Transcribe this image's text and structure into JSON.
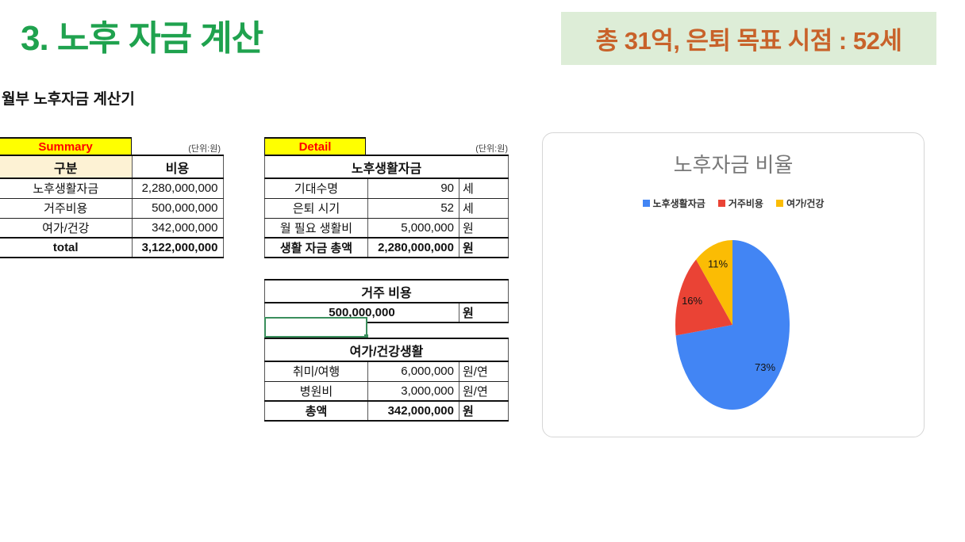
{
  "page": {
    "title": "3. 노후 자금 계산",
    "banner": "총 31억, 은퇴 목표 시점 : 52세",
    "subtitle": "월부 노후자금 계산기"
  },
  "summary": {
    "tab_label": "Summary",
    "unit_note": "(단위:원)",
    "columns": [
      "구분",
      "비용"
    ],
    "rows": [
      {
        "label": "노후생활자금",
        "value": "2,280,000,000"
      },
      {
        "label": "거주비용",
        "value": "500,000,000"
      },
      {
        "label": "여가/건강",
        "value": "342,000,000"
      }
    ],
    "total": {
      "label": "total",
      "value": "3,122,000,000"
    }
  },
  "detail": {
    "tab_label": "Detail",
    "unit_note": "(단위:원)",
    "life_table": {
      "title": "노후생활자금",
      "rows": [
        {
          "label": "기대수명",
          "value": "90",
          "unit": "세"
        },
        {
          "label": "은퇴 시기",
          "value": "52",
          "unit": "세"
        },
        {
          "label": "월 필요 생활비",
          "value": "5,000,000",
          "unit": "원"
        },
        {
          "label": "생활 자금 총액",
          "value": "2,280,000,000",
          "unit": "원"
        }
      ]
    },
    "housing_table": {
      "title": "거주 비용",
      "value": "500,000,000",
      "unit": "원"
    },
    "leisure_table": {
      "title": "여가/건강생활",
      "rows": [
        {
          "label": "취미/여행",
          "value": "6,000,000",
          "unit": "원/연"
        },
        {
          "label": "병원비",
          "value": "3,000,000",
          "unit": "원/연"
        },
        {
          "label": "총액",
          "value": "342,000,000",
          "unit": "원"
        }
      ]
    }
  },
  "chart_data": {
    "type": "pie",
    "title": "노후자금 비율",
    "categories": [
      "노후생활자금",
      "거주비용",
      "여가/건강"
    ],
    "values": [
      73,
      16,
      11
    ],
    "percent_labels": [
      "73%",
      "16%",
      "11%"
    ],
    "colors": [
      "#4285f4",
      "#ea4335",
      "#fbbc04"
    ],
    "legend_position": "top",
    "start_angle": "12-oclock",
    "direction": "clockwise"
  },
  "colors": {
    "accent_green": "#1fa24e",
    "banner_bg": "#ddedd7",
    "banner_text": "#c8622a",
    "tab_bg": "#ffff00",
    "tab_text": "#ff0000",
    "header_cream": "#fdf2d4",
    "cell_sel": "#3a8e5c",
    "chart_title": "#787878"
  }
}
